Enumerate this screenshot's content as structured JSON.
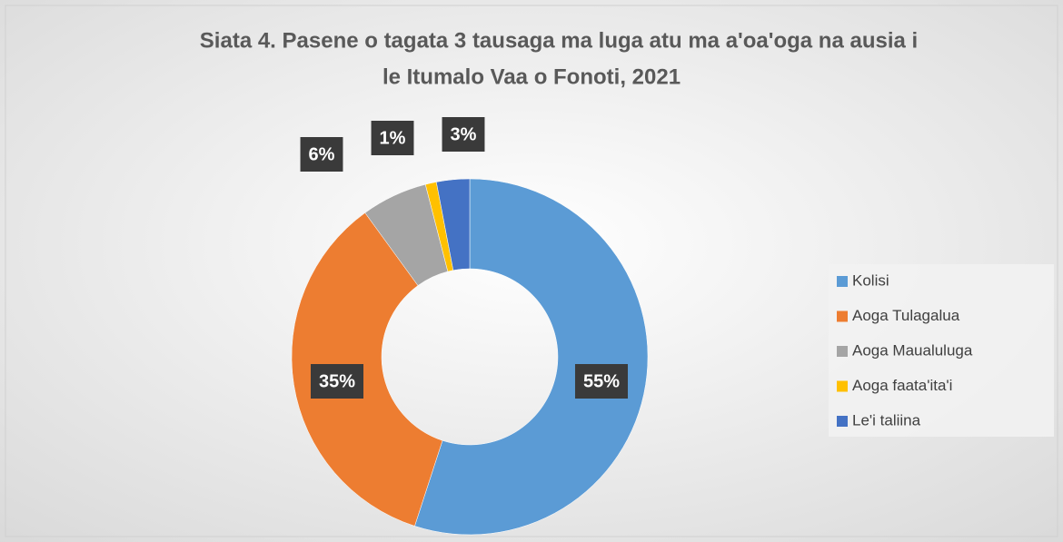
{
  "chart_data": {
    "type": "donut",
    "title": [
      "Siata 4. Pasene o tagata 3 tausaga ma luga atu ma a'oa'oga na ausia i",
      "le Itumalo Vaa o Fonoti, 2021"
    ],
    "categories": [
      "Kolisi",
      "Aoga Tulagalua",
      "Aoga Maualuluga",
      "Aoga faata'ita'i",
      "Le'i taliina"
    ],
    "values": [
      55,
      35,
      6,
      1,
      3
    ],
    "value_labels": [
      "55%",
      "35%",
      "6%",
      "1%",
      "3%"
    ],
    "colors": [
      "#5b9bd5",
      "#ed7d31",
      "#a5a5a5",
      "#ffc000",
      "#4472c4"
    ],
    "legend": "right"
  }
}
